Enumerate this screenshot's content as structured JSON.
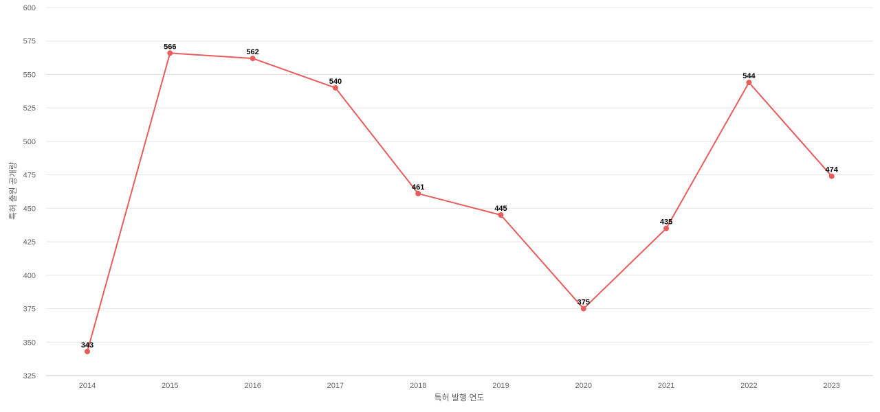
{
  "chart_data": {
    "type": "line",
    "x": [
      "2014",
      "2015",
      "2016",
      "2017",
      "2018",
      "2019",
      "2020",
      "2021",
      "2022",
      "2023"
    ],
    "series": [
      {
        "values": [
          343,
          566,
          562,
          540,
          461,
          445,
          375,
          435,
          544,
          474
        ]
      }
    ],
    "xlabel": "특허 발행 연도",
    "ylabel": "특허 출원 공개량",
    "ylim": [
      325,
      600
    ],
    "yticks": [
      325,
      350,
      375,
      400,
      425,
      450,
      475,
      500,
      525,
      550,
      575,
      600
    ],
    "grid": true,
    "data_labels": true,
    "colors": {
      "line": "#e85c5c",
      "marker": "#e85c5c",
      "grid": "#e5e5e5"
    }
  }
}
